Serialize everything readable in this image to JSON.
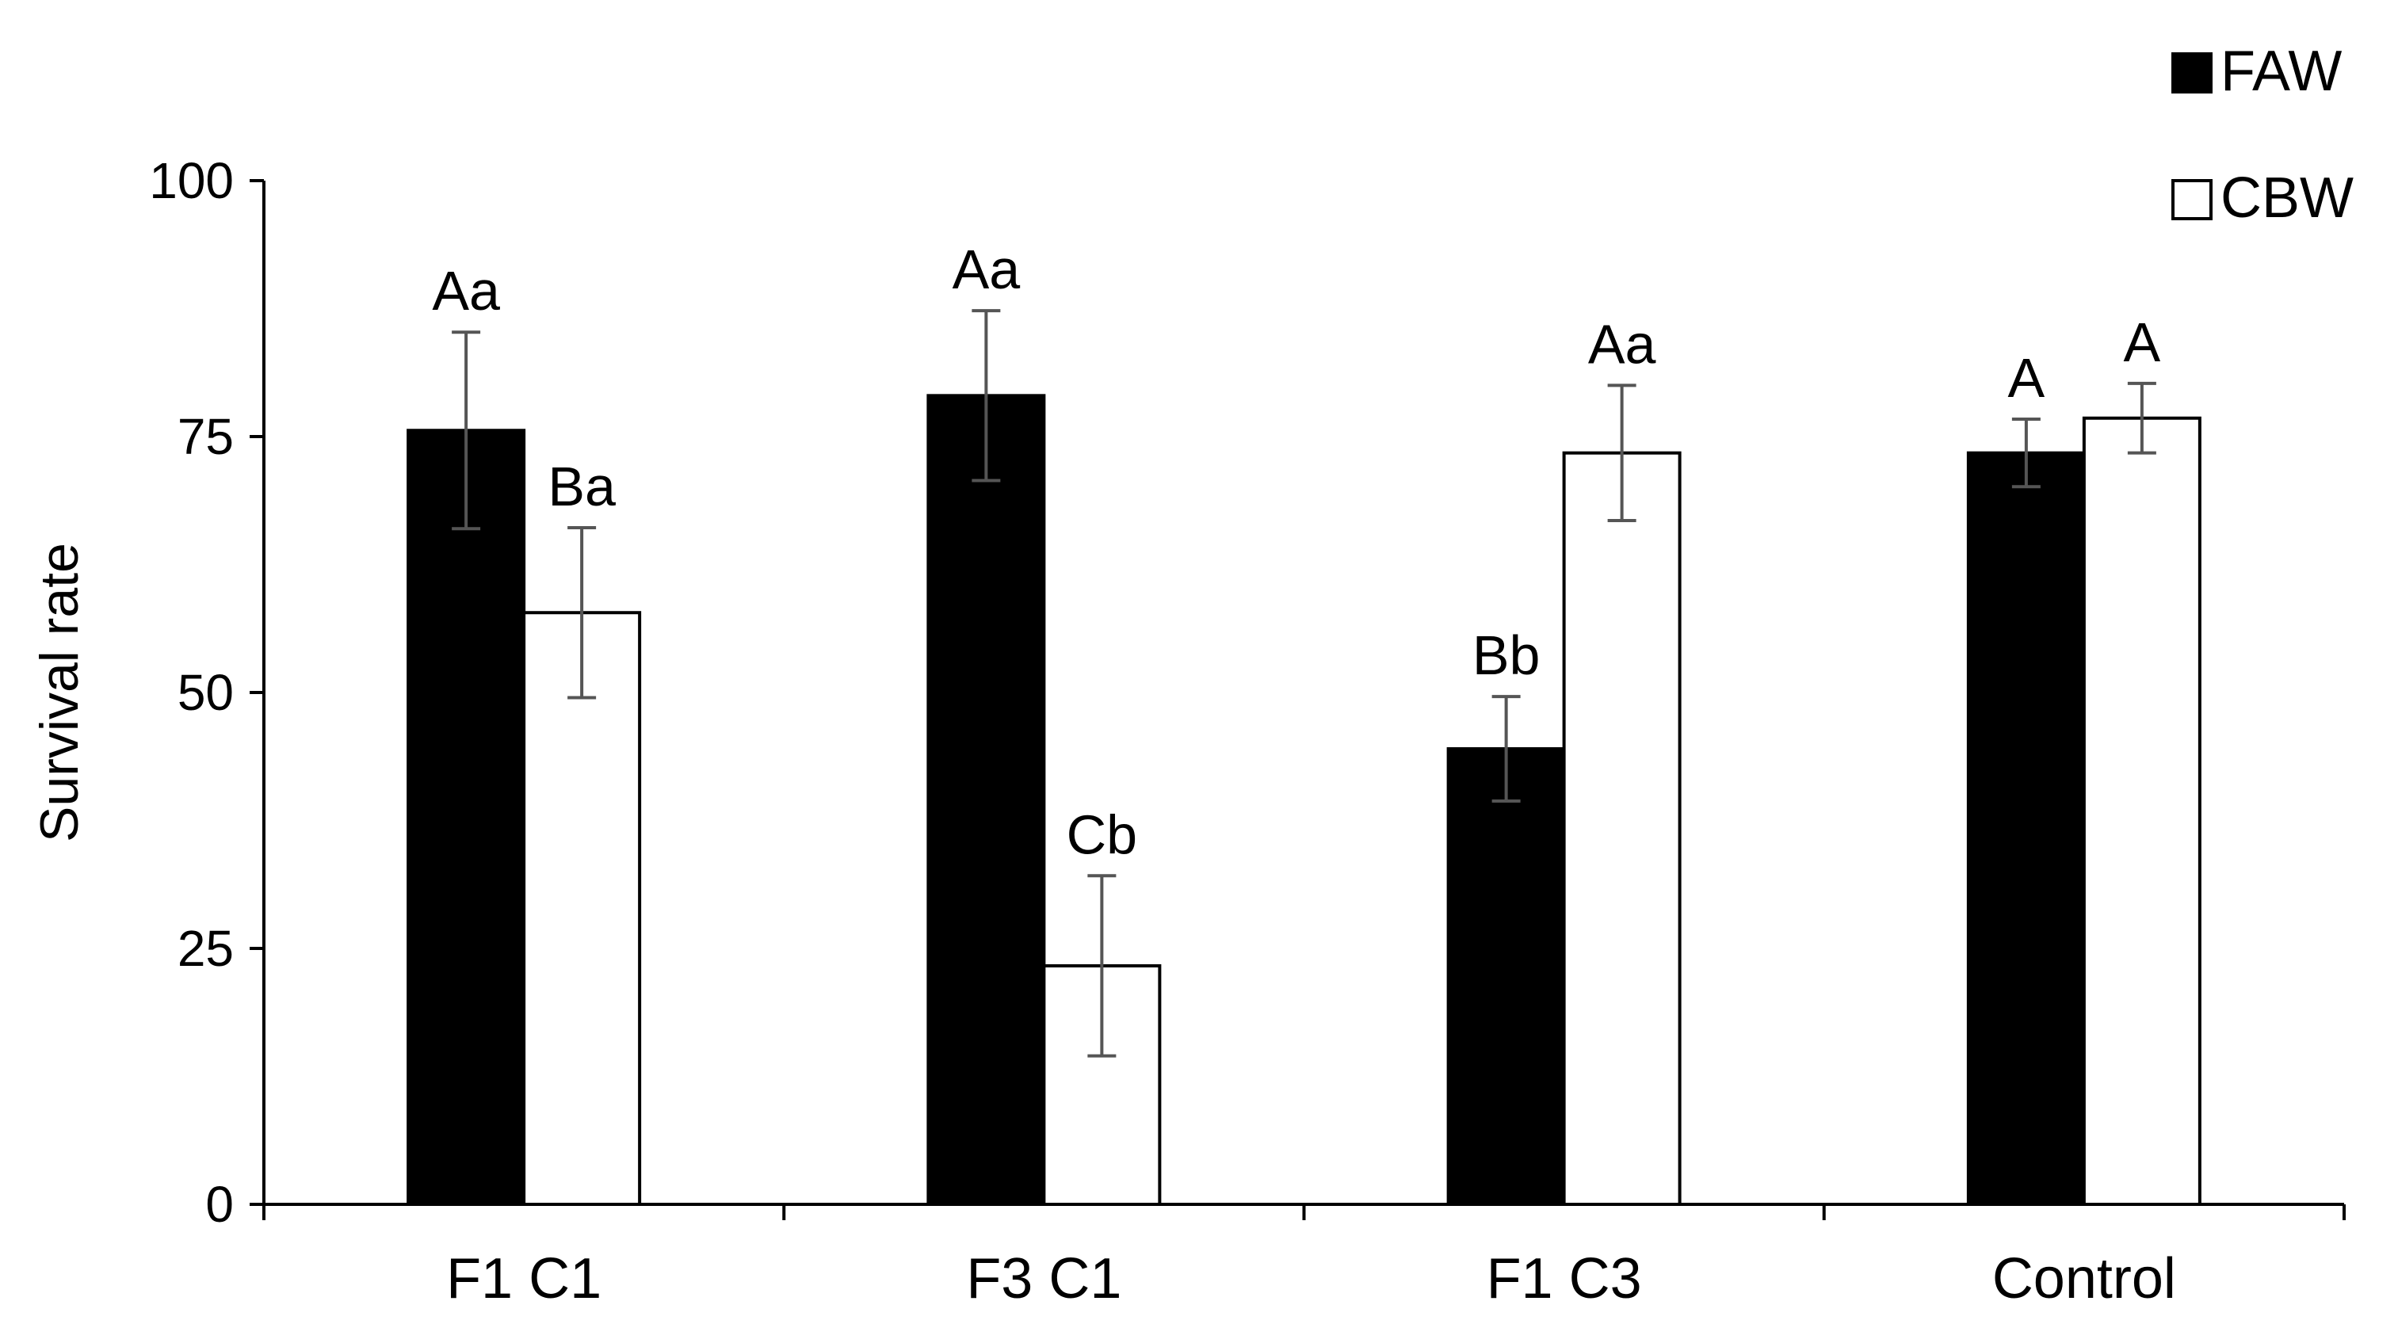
{
  "chart_data": {
    "type": "bar",
    "title": "",
    "xlabel": "",
    "ylabel": "Survival rate",
    "ylim": [
      0,
      100
    ],
    "yticks": [
      "0",
      "25",
      "50",
      "75",
      "100"
    ],
    "categories": [
      "F1 C1",
      "F3 C1",
      "F1 C3",
      "Control"
    ],
    "series": [
      {
        "name": "FAW",
        "color": "#000000",
        "values": [
          75.6,
          79.0,
          44.5,
          73.4
        ],
        "errors": [
          9.6,
          8.3,
          5.1,
          3.3
        ],
        "labels": [
          "Aa",
          "Aa",
          "Bb",
          "A"
        ]
      },
      {
        "name": "CBW",
        "color": "#ffffff",
        "values": [
          57.8,
          23.3,
          73.4,
          76.8
        ],
        "errors": [
          8.3,
          8.8,
          6.6,
          3.4
        ],
        "labels": [
          "Ba",
          "Cb",
          "Aa",
          "A"
        ]
      }
    ],
    "legend": "top-right"
  }
}
